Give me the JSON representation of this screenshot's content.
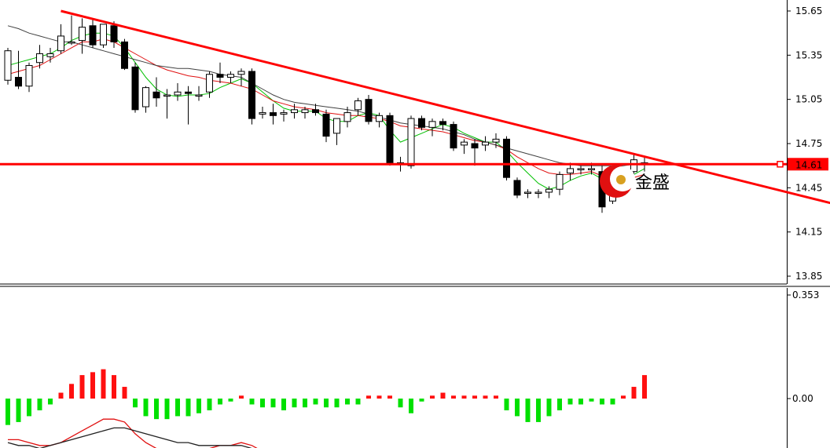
{
  "chart_data": [
    {
      "type": "candlestick",
      "panel": "price",
      "ylim": [
        13.8,
        15.68
      ],
      "y_ticks": [
        "15.65",
        "15.35",
        "15.05",
        "14.75",
        "14.45",
        "14.15",
        "13.85"
      ],
      "current_price_label": "14.61",
      "current_price": 14.61,
      "horizontal_line": 14.61,
      "trendline": {
        "from": [
          5,
          15.65
        ],
        "to": [
          79,
          14.32
        ]
      },
      "candles": [
        [
          15.18,
          15.4,
          15.15,
          15.38
        ],
        [
          15.2,
          15.38,
          15.12,
          15.14
        ],
        [
          15.14,
          15.3,
          15.1,
          15.28
        ],
        [
          15.3,
          15.42,
          15.26,
          15.36
        ],
        [
          15.34,
          15.4,
          15.3,
          15.36
        ],
        [
          15.38,
          15.56,
          15.36,
          15.48
        ],
        [
          15.44,
          15.62,
          15.42,
          15.44
        ],
        [
          15.45,
          15.6,
          15.36,
          15.54
        ],
        [
          15.55,
          15.6,
          15.4,
          15.42
        ],
        [
          15.42,
          15.56,
          15.4,
          15.56
        ],
        [
          15.55,
          15.58,
          15.4,
          15.44
        ],
        [
          15.44,
          15.46,
          15.25,
          15.26
        ],
        [
          15.27,
          15.3,
          14.96,
          14.98
        ],
        [
          15.0,
          15.14,
          14.96,
          15.13
        ],
        [
          15.1,
          15.2,
          15.0,
          15.06
        ],
        [
          15.08,
          15.12,
          14.92,
          15.08
        ],
        [
          15.08,
          15.16,
          15.04,
          15.1
        ],
        [
          15.1,
          15.14,
          14.88,
          15.09
        ],
        [
          15.08,
          15.14,
          15.04,
          15.08
        ],
        [
          15.1,
          15.24,
          15.06,
          15.22
        ],
        [
          15.22,
          15.3,
          15.16,
          15.2
        ],
        [
          15.2,
          15.24,
          15.16,
          15.22
        ],
        [
          15.22,
          15.26,
          15.14,
          15.24
        ],
        [
          15.24,
          15.26,
          14.88,
          14.92
        ],
        [
          14.95,
          15.0,
          14.92,
          14.96
        ],
        [
          14.96,
          15.02,
          14.88,
          14.94
        ],
        [
          14.95,
          14.98,
          14.9,
          14.96
        ],
        [
          14.96,
          15.02,
          14.92,
          14.98
        ],
        [
          14.96,
          15.0,
          14.92,
          14.98
        ],
        [
          14.98,
          15.02,
          14.94,
          14.96
        ],
        [
          14.95,
          14.98,
          14.76,
          14.8
        ],
        [
          14.82,
          14.92,
          14.74,
          14.92
        ],
        [
          14.9,
          15.0,
          14.86,
          14.96
        ],
        [
          14.98,
          15.06,
          14.94,
          15.04
        ],
        [
          15.05,
          15.08,
          14.88,
          14.9
        ],
        [
          14.9,
          14.96,
          14.86,
          14.94
        ],
        [
          14.94,
          14.96,
          14.6,
          14.62
        ],
        [
          14.62,
          14.66,
          14.56,
          14.62
        ],
        [
          14.6,
          14.94,
          14.58,
          14.92
        ],
        [
          14.92,
          14.94,
          14.84,
          14.86
        ],
        [
          14.86,
          14.92,
          14.8,
          14.9
        ],
        [
          14.9,
          14.92,
          14.84,
          14.88
        ],
        [
          14.88,
          14.9,
          14.7,
          14.72
        ],
        [
          14.74,
          14.78,
          14.68,
          14.76
        ],
        [
          14.75,
          14.78,
          14.6,
          14.72
        ],
        [
          14.74,
          14.8,
          14.7,
          14.76
        ],
        [
          14.76,
          14.82,
          14.72,
          14.78
        ],
        [
          14.78,
          14.8,
          14.5,
          14.52
        ],
        [
          14.5,
          14.52,
          14.38,
          14.4
        ],
        [
          14.42,
          14.44,
          14.38,
          14.42
        ],
        [
          14.42,
          14.44,
          14.38,
          14.42
        ],
        [
          14.42,
          14.46,
          14.38,
          14.44
        ],
        [
          14.44,
          14.56,
          14.4,
          14.54
        ],
        [
          14.55,
          14.62,
          14.5,
          14.58
        ],
        [
          14.58,
          14.6,
          14.54,
          14.58
        ],
        [
          14.58,
          14.62,
          14.54,
          14.58
        ],
        [
          14.56,
          14.6,
          14.28,
          14.32
        ],
        [
          14.36,
          14.48,
          14.34,
          14.44
        ],
        [
          14.44,
          14.58,
          14.4,
          14.56
        ],
        [
          14.56,
          14.68,
          14.52,
          14.64
        ],
        [
          14.62,
          14.66,
          14.56,
          14.62
        ]
      ],
      "moving_averages": [
        {
          "color": "#00c000",
          "values": [
            15.28,
            15.3,
            15.32,
            15.34,
            15.36,
            15.4,
            15.45,
            15.48,
            15.5,
            15.5,
            15.48,
            15.4,
            15.3,
            15.2,
            15.12,
            15.08,
            15.07,
            15.08,
            15.08,
            15.09,
            15.13,
            15.16,
            15.19,
            15.16,
            15.1,
            15.04,
            14.99,
            14.97,
            14.97,
            14.97,
            14.92,
            14.9,
            14.9,
            14.94,
            14.96,
            14.94,
            14.84,
            14.76,
            14.79,
            14.82,
            14.85,
            14.88,
            14.86,
            14.82,
            14.79,
            14.76,
            14.76,
            14.7,
            14.62,
            14.55,
            14.48,
            14.44,
            14.46,
            14.5,
            14.53,
            14.55,
            14.51,
            14.48,
            14.5,
            14.54,
            14.58
          ]
        },
        {
          "color": "#e01010",
          "values": [
            15.22,
            15.24,
            15.26,
            15.28,
            15.32,
            15.36,
            15.4,
            15.44,
            15.44,
            15.46,
            15.44,
            15.4,
            15.36,
            15.32,
            15.28,
            15.25,
            15.23,
            15.21,
            15.2,
            15.18,
            15.17,
            15.16,
            15.14,
            15.12,
            15.08,
            15.04,
            15.02,
            15.0,
            14.99,
            14.98,
            14.96,
            14.95,
            14.94,
            14.94,
            14.93,
            14.92,
            14.9,
            14.87,
            14.86,
            14.85,
            14.84,
            14.83,
            14.81,
            14.79,
            14.77,
            14.76,
            14.74,
            14.71,
            14.66,
            14.62,
            14.58,
            14.55,
            14.54,
            14.54,
            14.55,
            14.56,
            14.53,
            14.51,
            14.51,
            14.52,
            14.54
          ]
        },
        {
          "color": "#404040",
          "values": [
            15.55,
            15.53,
            15.5,
            15.48,
            15.46,
            15.44,
            15.44,
            15.42,
            15.4,
            15.38,
            15.36,
            15.34,
            15.32,
            15.3,
            15.28,
            15.27,
            15.26,
            15.26,
            15.25,
            15.24,
            15.22,
            15.21,
            15.2,
            15.16,
            15.12,
            15.08,
            15.05,
            15.03,
            15.02,
            15.01,
            15.0,
            14.99,
            14.98,
            14.97,
            14.95,
            14.93,
            14.91,
            14.89,
            14.88,
            14.87,
            14.86,
            14.85,
            14.83,
            14.81,
            14.78,
            14.76,
            14.74,
            14.72,
            14.7,
            14.68,
            14.66,
            14.64,
            14.62,
            14.61,
            14.6,
            14.6,
            14.6,
            14.6,
            14.6,
            14.61,
            14.62
          ]
        }
      ]
    },
    {
      "type": "histogram",
      "panel": "oscillator",
      "y_ticks": [
        "0.353",
        "0.00"
      ],
      "ylim": [
        -0.42,
        0.353
      ],
      "up_color": "#00e000",
      "down_color": "#ff1010",
      "values": [
        -0.09,
        -0.08,
        -0.06,
        -0.04,
        -0.02,
        0.02,
        0.05,
        0.08,
        0.09,
        0.1,
        0.08,
        0.04,
        -0.03,
        -0.06,
        -0.07,
        -0.07,
        -0.06,
        -0.06,
        -0.05,
        -0.04,
        -0.02,
        -0.01,
        0.01,
        -0.02,
        -0.03,
        -0.03,
        -0.04,
        -0.03,
        -0.03,
        -0.02,
        -0.03,
        -0.03,
        -0.02,
        -0.02,
        0.01,
        0.01,
        0.01,
        -0.03,
        -0.05,
        -0.01,
        0.01,
        0.02,
        0.01,
        0.01,
        0.01,
        0.01,
        0.01,
        -0.04,
        -0.06,
        -0.08,
        -0.08,
        -0.06,
        -0.04,
        -0.02,
        -0.02,
        -0.01,
        -0.02,
        -0.02,
        0.01,
        0.04,
        0.08
      ],
      "lines": [
        {
          "color": "#e01010",
          "values": [
            -0.14,
            -0.14,
            -0.15,
            -0.16,
            -0.16,
            -0.15,
            -0.13,
            -0.11,
            -0.09,
            -0.07,
            -0.07,
            -0.08,
            -0.12,
            -0.15,
            -0.17,
            -0.18,
            -0.19,
            -0.19,
            -0.18,
            -0.17,
            -0.16,
            -0.16,
            -0.15,
            -0.16,
            -0.18,
            -0.19,
            -0.19,
            -0.19,
            -0.19,
            -0.19,
            -0.19,
            -0.19,
            -0.18,
            -0.18,
            -0.17,
            -0.17,
            -0.17,
            -0.18,
            -0.19,
            -0.19,
            -0.18,
            -0.17,
            -0.17,
            -0.17,
            -0.17,
            -0.17,
            -0.17,
            -0.19,
            -0.21,
            -0.23,
            -0.24,
            -0.23,
            -0.22,
            -0.21,
            -0.21,
            -0.22,
            -0.23,
            -0.23,
            -0.22,
            -0.2,
            -0.17
          ]
        },
        {
          "color": "#202020",
          "values": [
            -0.15,
            -0.16,
            -0.16,
            -0.17,
            -0.16,
            -0.15,
            -0.14,
            -0.13,
            -0.12,
            -0.11,
            -0.1,
            -0.1,
            -0.11,
            -0.12,
            -0.13,
            -0.14,
            -0.15,
            -0.15,
            -0.16,
            -0.16,
            -0.16,
            -0.16,
            -0.16,
            -0.17,
            -0.17,
            -0.17,
            -0.17,
            -0.18,
            -0.18,
            -0.18,
            -0.18,
            -0.19,
            -0.19,
            -0.19,
            -0.18,
            -0.18,
            -0.18,
            -0.18,
            -0.18,
            -0.18,
            -0.18,
            -0.18,
            -0.18,
            -0.18,
            -0.17,
            -0.17,
            -0.17,
            -0.18,
            -0.19,
            -0.2,
            -0.21,
            -0.21,
            -0.21,
            -0.21,
            -0.21,
            -0.21,
            -0.21,
            -0.21,
            -0.21,
            -0.2,
            -0.2
          ]
        }
      ]
    }
  ],
  "watermark": {
    "text": "金盛",
    "colors": {
      "red": "#e01010",
      "gold": "#d8a020"
    }
  }
}
